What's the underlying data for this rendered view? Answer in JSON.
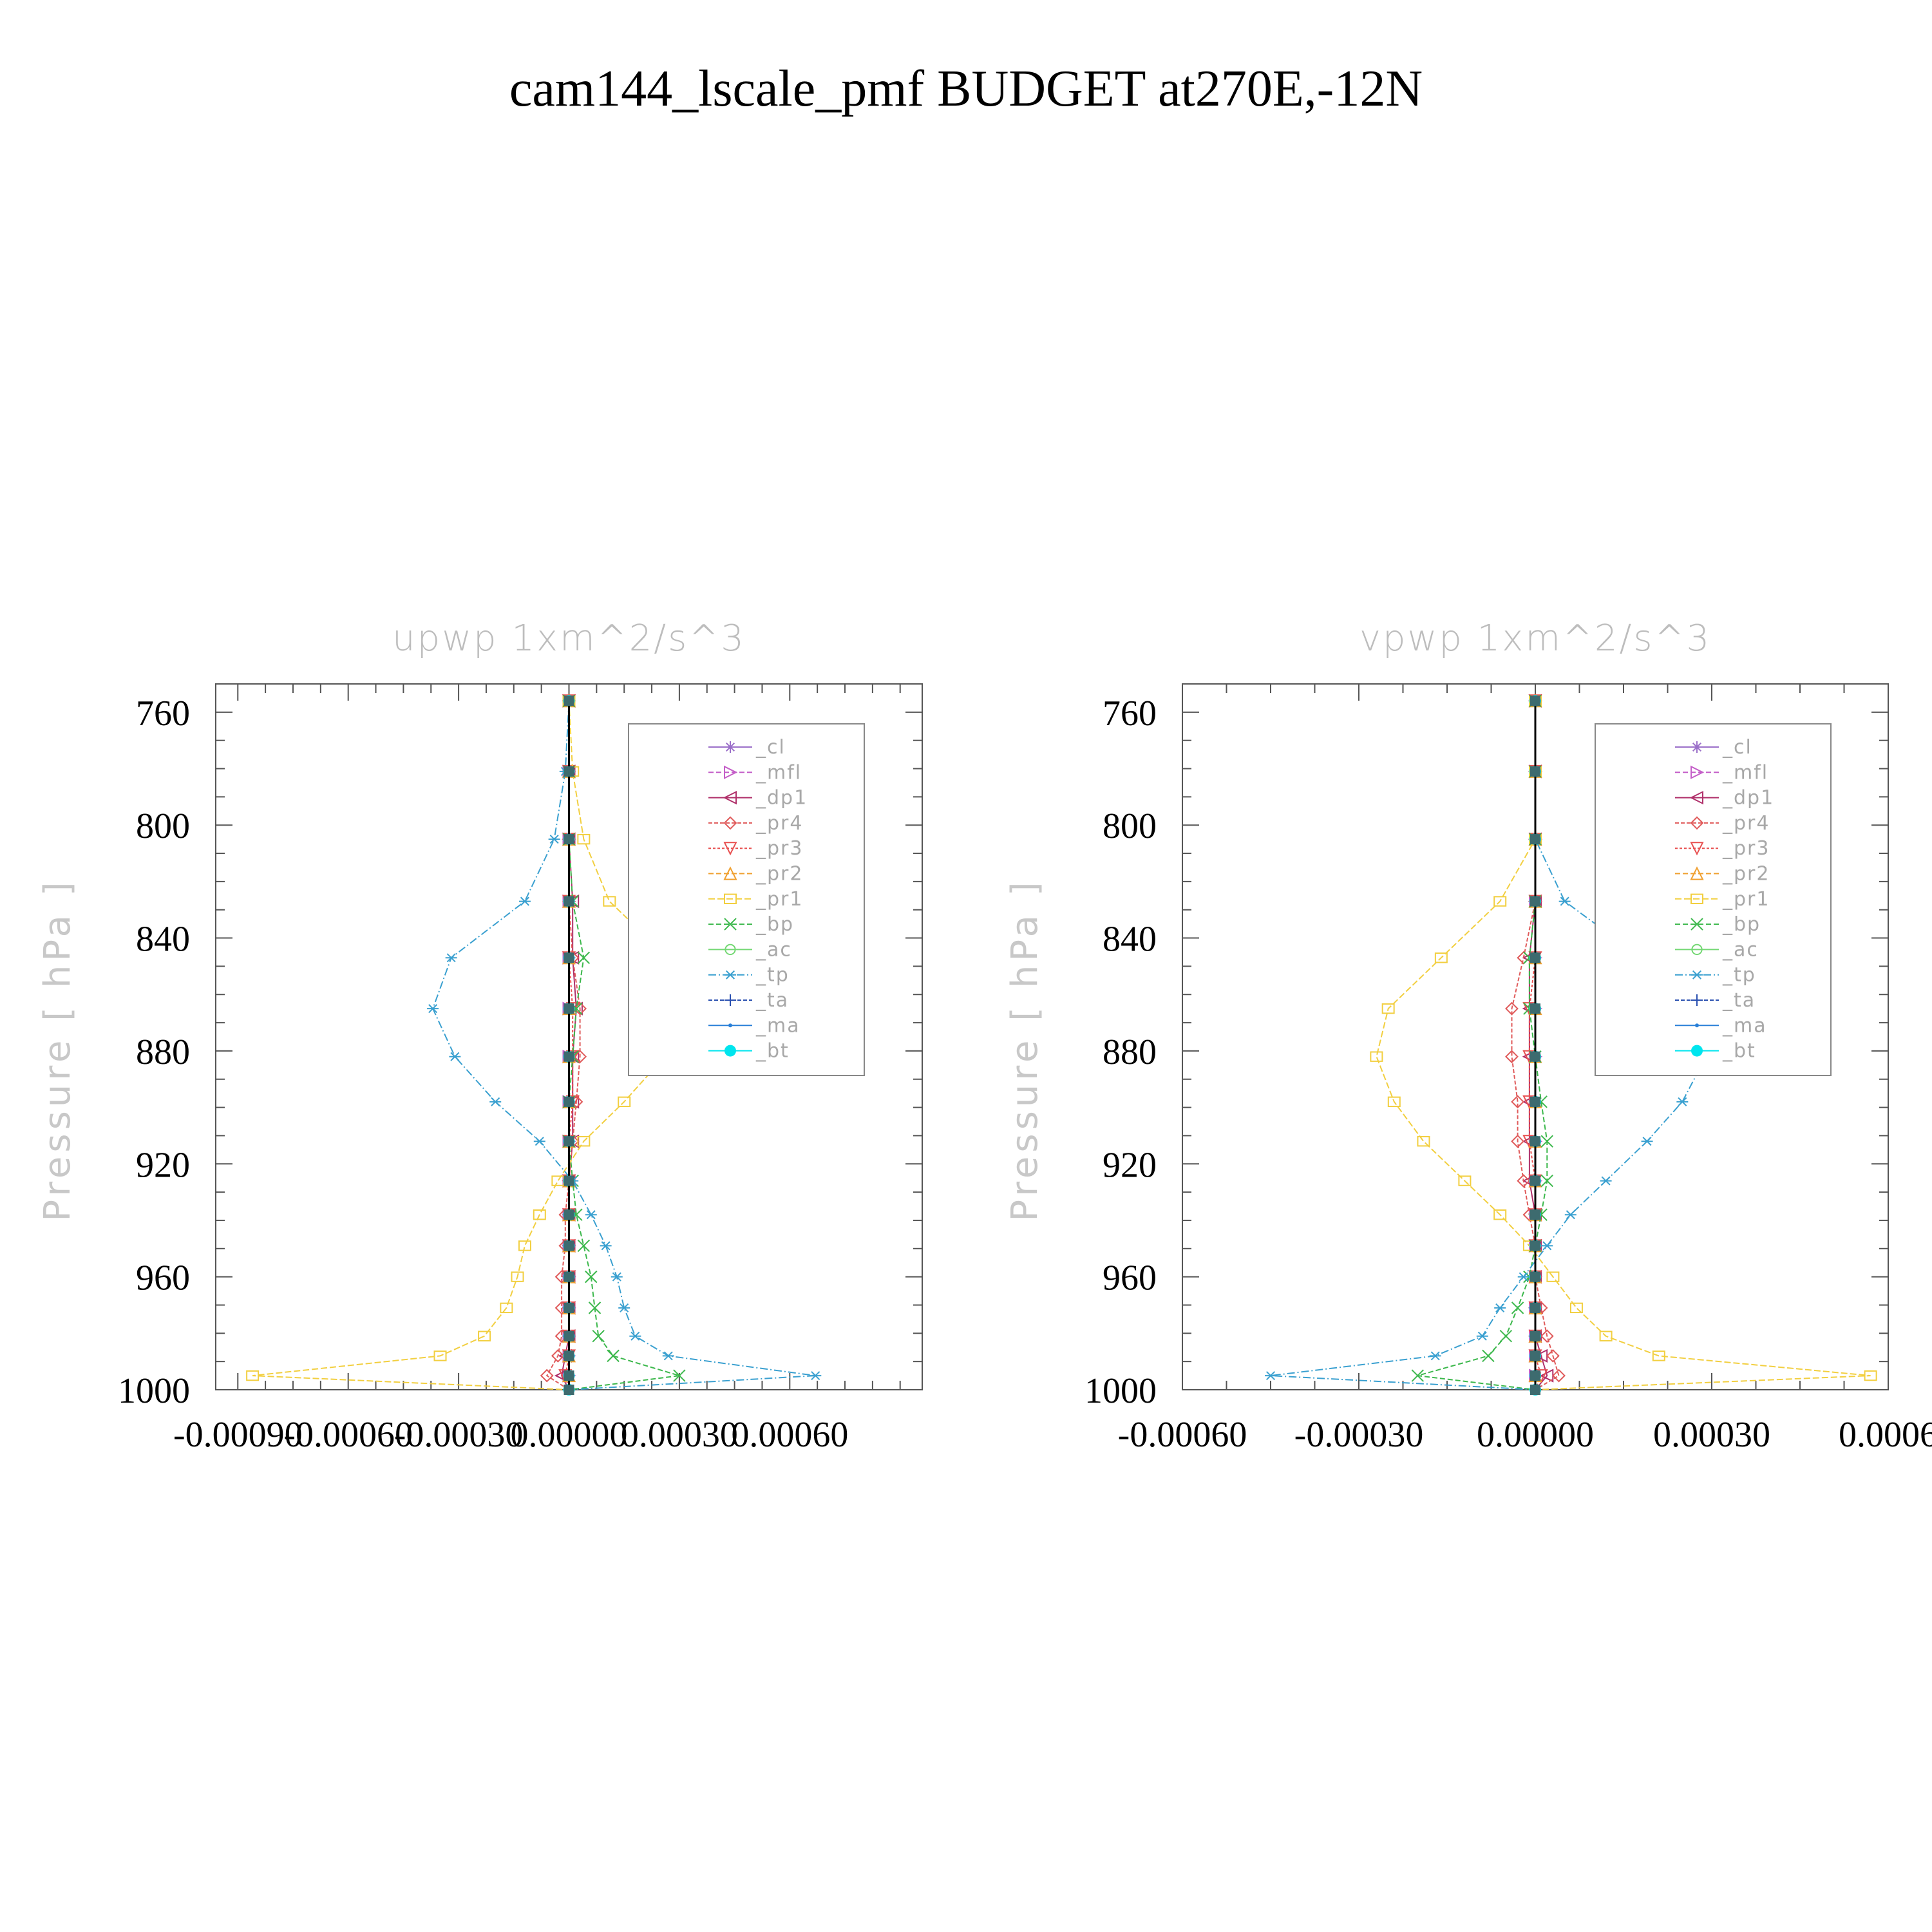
{
  "figure": {
    "title": "cam144_lscale_pmf  BUDGET at270E,-12N"
  },
  "chart_data": [
    {
      "type": "line",
      "title": "upwp    1xm^2/s^3",
      "ylabel": "Pressure  [ hPa ]",
      "xlabel": "",
      "ylim": [
        750,
        1000
      ],
      "y_inverted": true,
      "xlim": [
        -0.00096,
        0.00096
      ],
      "x_tick_values": [
        -0.0009,
        -0.0006,
        -0.0003,
        0.0,
        0.0003,
        0.0006
      ],
      "x_tick_labels": [
        "-0.00090",
        "-0.00060",
        "-0.00030",
        "0.00000",
        "0.00030",
        "0.00060"
      ],
      "y_tick_values": [
        760,
        800,
        840,
        880,
        920,
        960,
        1000
      ],
      "y_tick_labels": [
        "760",
        "800",
        "840",
        "880",
        "920",
        "960",
        "1000"
      ],
      "legend_position": "top-right",
      "y_levels": [
        756,
        781,
        805,
        827,
        847,
        865,
        882,
        898,
        912,
        926,
        938,
        949,
        960,
        971,
        981,
        988,
        995,
        1000
      ],
      "series": [
        {
          "name": "_cl",
          "color": "#9b6fc9",
          "marker": "star",
          "dash": "",
          "values": [
            0,
            0,
            0,
            0,
            0,
            0,
            0,
            0,
            0,
            0,
            0,
            0,
            0,
            0,
            0,
            0,
            0,
            0
          ]
        },
        {
          "name": "_mfl",
          "color": "#c45ec8",
          "marker": "triangle-right",
          "dash": "8,4",
          "values": [
            0,
            0,
            0,
            0,
            0,
            0,
            0,
            0,
            0,
            0,
            0,
            0,
            0,
            0,
            0,
            0,
            0,
            0
          ]
        },
        {
          "name": "_dp1",
          "color": "#b0306a",
          "marker": "triangle-left",
          "dash": "",
          "values": [
            0,
            0,
            0,
            1e-05,
            1e-05,
            2e-05,
            1e-05,
            1e-05,
            1e-05,
            0,
            0,
            0,
            0,
            0,
            0,
            -1e-05,
            -2e-05,
            0
          ]
        },
        {
          "name": "_pr4",
          "color": "#e05a5a",
          "marker": "diamond",
          "dash": "6,3",
          "values": [
            0,
            0,
            0,
            0,
            1e-05,
            3e-05,
            3e-05,
            2e-05,
            1e-05,
            0,
            -1e-05,
            -1e-05,
            -2e-05,
            -2e-05,
            -2e-05,
            -3e-05,
            -6e-05,
            0
          ]
        },
        {
          "name": "_pr3",
          "color": "#e85050",
          "marker": "triangle-down",
          "dash": "4,3",
          "values": [
            0,
            0,
            0,
            0,
            0,
            1e-05,
            1e-05,
            1e-05,
            0,
            0,
            0,
            0,
            0,
            0,
            0,
            0,
            -1e-05,
            0
          ]
        },
        {
          "name": "_pr2",
          "color": "#f0a030",
          "marker": "triangle-up",
          "dash": "8,4",
          "values": [
            0,
            0,
            0,
            0,
            0,
            0,
            0,
            0,
            0,
            0,
            0,
            0,
            0,
            0,
            0,
            0,
            0,
            0
          ]
        },
        {
          "name": "_pr1",
          "color": "#f2cf40",
          "marker": "square",
          "dash": "10,4",
          "values": [
            0,
            1e-05,
            4e-05,
            0.00011,
            0.00027,
            0.00031,
            0.00026,
            0.00015,
            4e-05,
            -3e-05,
            -8e-05,
            -0.00012,
            -0.00014,
            -0.00017,
            -0.00023,
            -0.00035,
            -0.00086,
            0
          ]
        },
        {
          "name": "_bp",
          "color": "#3cb84c",
          "marker": "x",
          "dash": "8,4",
          "values": [
            0,
            0,
            0,
            1e-05,
            4e-05,
            2e-05,
            1e-05,
            0,
            0,
            1e-05,
            2e-05,
            4e-05,
            6e-05,
            7e-05,
            8e-05,
            0.00012,
            0.0003,
            0
          ]
        },
        {
          "name": "_ac",
          "color": "#74d874",
          "marker": "circle",
          "dash": "",
          "values": [
            0,
            0,
            0,
            0,
            0,
            0,
            0,
            0,
            0,
            0,
            0,
            0,
            0,
            0,
            0,
            0,
            0,
            0
          ]
        },
        {
          "name": "_tp",
          "color": "#3aa0d0",
          "marker": "asterisk",
          "dash": "12,4,2,4",
          "values": [
            0,
            -1e-05,
            -4e-05,
            -0.00012,
            -0.00032,
            -0.00037,
            -0.00031,
            -0.0002,
            -8e-05,
            1e-05,
            6e-05,
            0.0001,
            0.00013,
            0.00015,
            0.00018,
            0.00027,
            0.00067,
            0
          ]
        },
        {
          "name": "_ta",
          "color": "#2a50b0",
          "marker": "plus",
          "dash": "6,3",
          "values": [
            0,
            0,
            0,
            0,
            0,
            0,
            0,
            0,
            0,
            0,
            0,
            0,
            0,
            0,
            0,
            0,
            0,
            0
          ]
        },
        {
          "name": "_ma",
          "color": "#2a80d8",
          "marker": "dot",
          "dash": "",
          "values": [
            0,
            0,
            0,
            0,
            0,
            0,
            0,
            0,
            0,
            0,
            0,
            0,
            0,
            0,
            0,
            0,
            0,
            0
          ]
        },
        {
          "name": "_bt",
          "color": "#00e5ee",
          "marker": "filled-circle",
          "dash": "",
          "values": [
            0,
            0,
            0,
            0,
            0,
            0,
            0,
            0,
            0,
            0,
            0,
            0,
            0,
            0,
            0,
            0,
            0,
            0
          ]
        }
      ]
    },
    {
      "type": "line",
      "title": "vpwp    1xm^2/s^3",
      "ylabel": "Pressure  [ hPa ]",
      "xlabel": "",
      "ylim": [
        750,
        1000
      ],
      "y_inverted": true,
      "xlim": [
        -0.0006,
        0.0006
      ],
      "x_tick_values": [
        -0.0006,
        -0.0003,
        0.0,
        0.0003,
        0.0006
      ],
      "x_tick_labels": [
        "-0.00060",
        "-0.00030",
        "0.00000",
        "0.00030",
        "0.0006"
      ],
      "y_tick_values": [
        760,
        800,
        840,
        880,
        920,
        960,
        1000
      ],
      "y_tick_labels": [
        "760",
        "800",
        "840",
        "880",
        "920",
        "960",
        "1000"
      ],
      "legend_position": "top-right",
      "y_levels": [
        756,
        781,
        805,
        827,
        847,
        865,
        882,
        898,
        912,
        926,
        938,
        949,
        960,
        971,
        981,
        988,
        995,
        1000
      ],
      "series": [
        {
          "name": "_cl",
          "color": "#9b6fc9",
          "marker": "star",
          "dash": "",
          "values": [
            0,
            0,
            0,
            0,
            0,
            0,
            0,
            0,
            0,
            0,
            0,
            0,
            0,
            0,
            0,
            0,
            0,
            0
          ]
        },
        {
          "name": "_mfl",
          "color": "#c45ec8",
          "marker": "triangle-right",
          "dash": "8,4",
          "values": [
            0,
            0,
            0,
            0,
            0,
            0,
            0,
            0,
            0,
            0,
            0,
            0,
            0,
            0,
            0,
            0,
            0,
            0
          ]
        },
        {
          "name": "_dp1",
          "color": "#b0306a",
          "marker": "triangle-left",
          "dash": "",
          "values": [
            0,
            0,
            0,
            0,
            -1e-05,
            -1e-05,
            -1e-05,
            -1e-05,
            -1e-05,
            -1e-05,
            0,
            0,
            0,
            0,
            0,
            1e-05,
            2e-05,
            0
          ]
        },
        {
          "name": "_pr4",
          "color": "#e05a5a",
          "marker": "diamond",
          "dash": "6,3",
          "values": [
            0,
            0,
            0,
            0,
            -2e-05,
            -4e-05,
            -4e-05,
            -3e-05,
            -3e-05,
            -2e-05,
            -1e-05,
            0,
            0,
            1e-05,
            2e-05,
            3e-05,
            4e-05,
            0
          ]
        },
        {
          "name": "_pr3",
          "color": "#e85050",
          "marker": "triangle-down",
          "dash": "4,3",
          "values": [
            0,
            0,
            0,
            0,
            0,
            -1e-05,
            -1e-05,
            -1e-05,
            -1e-05,
            0,
            0,
            0,
            0,
            0,
            0,
            0,
            1e-05,
            0
          ]
        },
        {
          "name": "_pr2",
          "color": "#f0a030",
          "marker": "triangle-up",
          "dash": "8,4",
          "values": [
            0,
            0,
            0,
            0,
            0,
            0,
            0,
            0,
            0,
            0,
            0,
            0,
            0,
            0,
            0,
            0,
            0,
            0
          ]
        },
        {
          "name": "_pr1",
          "color": "#f2cf40",
          "marker": "square",
          "dash": "10,4",
          "values": [
            0,
            0,
            0,
            -6e-05,
            -0.00016,
            -0.00025,
            -0.00027,
            -0.00024,
            -0.00019,
            -0.00012,
            -6e-05,
            -1e-05,
            3e-05,
            7e-05,
            0.00012,
            0.00021,
            0.00057,
            0
          ]
        },
        {
          "name": "_bp",
          "color": "#3cb84c",
          "marker": "x",
          "dash": "8,4",
          "values": [
            0,
            0,
            0,
            0,
            -1e-05,
            -1e-05,
            0,
            1e-05,
            2e-05,
            2e-05,
            1e-05,
            0,
            -1e-05,
            -3e-05,
            -5e-05,
            -8e-05,
            -0.0002,
            0
          ]
        },
        {
          "name": "_ac",
          "color": "#74d874",
          "marker": "circle",
          "dash": "",
          "values": [
            0,
            0,
            0,
            0,
            0,
            0,
            0,
            0,
            0,
            0,
            0,
            0,
            0,
            0,
            0,
            0,
            0,
            0
          ]
        },
        {
          "name": "_tp",
          "color": "#3aa0d0",
          "marker": "asterisk",
          "dash": "12,4,2,4",
          "values": [
            0,
            0,
            0,
            5e-05,
            0.00018,
            0.00027,
            0.00029,
            0.00025,
            0.00019,
            0.00012,
            6e-05,
            2e-05,
            -2e-05,
            -6e-05,
            -9e-05,
            -0.00017,
            -0.00045,
            0
          ]
        },
        {
          "name": "_ta",
          "color": "#2a50b0",
          "marker": "plus",
          "dash": "6,3",
          "values": [
            0,
            0,
            0,
            0,
            0,
            0,
            0,
            0,
            0,
            0,
            0,
            0,
            0,
            0,
            0,
            0,
            0,
            0
          ]
        },
        {
          "name": "_ma",
          "color": "#2a80d8",
          "marker": "dot",
          "dash": "",
          "values": [
            0,
            0,
            0,
            0,
            0,
            0,
            0,
            0,
            0,
            0,
            0,
            0,
            0,
            0,
            0,
            0,
            0,
            0
          ]
        },
        {
          "name": "_bt",
          "color": "#00e5ee",
          "marker": "filled-circle",
          "dash": "",
          "values": [
            0,
            0,
            0,
            0,
            0,
            0,
            0,
            0,
            0,
            0,
            0,
            0,
            0,
            0,
            0,
            0,
            0,
            0
          ]
        }
      ]
    }
  ]
}
